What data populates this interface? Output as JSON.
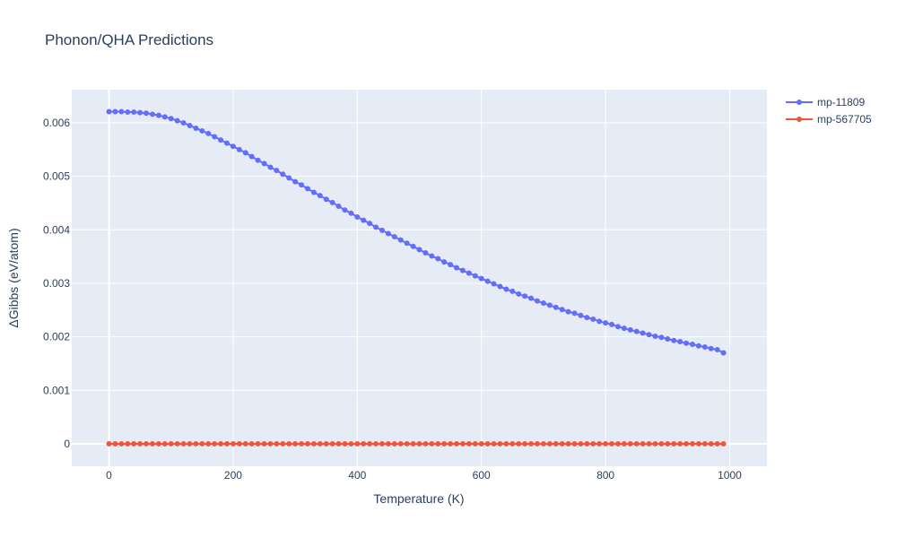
{
  "chart_data": {
    "type": "line",
    "title": "Phonon/QHA Predictions",
    "xlabel": "Temperature (K)",
    "ylabel": "ΔGibbs (eV/atom)",
    "xlim": [
      -60,
      1060
    ],
    "ylim": [
      -0.00042,
      0.00662
    ],
    "xticks": [
      0,
      200,
      400,
      600,
      800,
      1000
    ],
    "xtick_labels": [
      "0",
      "200",
      "400",
      "600",
      "800",
      "1000"
    ],
    "yticks": [
      0,
      0.001,
      0.002,
      0.003,
      0.004,
      0.005,
      0.006
    ],
    "ytick_labels": [
      "0",
      "0.001",
      "0.002",
      "0.003",
      "0.004",
      "0.005",
      "0.006"
    ],
    "grid": true,
    "legend_position": "top-right",
    "x": [
      0,
      10,
      20,
      30,
      40,
      50,
      60,
      70,
      80,
      90,
      100,
      110,
      120,
      130,
      140,
      150,
      160,
      170,
      180,
      190,
      200,
      210,
      220,
      230,
      240,
      250,
      260,
      270,
      280,
      290,
      300,
      310,
      320,
      330,
      340,
      350,
      360,
      370,
      380,
      390,
      400,
      410,
      420,
      430,
      440,
      450,
      460,
      470,
      480,
      490,
      500,
      510,
      520,
      530,
      540,
      550,
      560,
      570,
      580,
      590,
      600,
      610,
      620,
      630,
      640,
      650,
      660,
      670,
      680,
      690,
      700,
      710,
      720,
      730,
      740,
      750,
      760,
      770,
      780,
      790,
      800,
      810,
      820,
      830,
      840,
      850,
      860,
      870,
      880,
      890,
      900,
      910,
      920,
      930,
      940,
      950,
      960,
      970,
      980,
      990
    ],
    "series": [
      {
        "name": "mp-11809",
        "color": "#636efa",
        "values": [
          0.00621,
          0.00621,
          0.00621,
          0.0062,
          0.0062,
          0.00619,
          0.00618,
          0.00616,
          0.00614,
          0.00611,
          0.00608,
          0.00604,
          0.006,
          0.00595,
          0.0059,
          0.00585,
          0.0058,
          0.00574,
          0.00568,
          0.00562,
          0.00556,
          0.0055,
          0.00544,
          0.00537,
          0.0053,
          0.00524,
          0.00517,
          0.00511,
          0.00504,
          0.00497,
          0.0049,
          0.00484,
          0.00477,
          0.0047,
          0.00464,
          0.00457,
          0.00451,
          0.00444,
          0.00437,
          0.00431,
          0.00424,
          0.00418,
          0.00412,
          0.00405,
          0.00399,
          0.00393,
          0.00387,
          0.00381,
          0.00375,
          0.00369,
          0.00363,
          0.00357,
          0.00351,
          0.00346,
          0.0034,
          0.00335,
          0.00329,
          0.00324,
          0.00319,
          0.00314,
          0.00309,
          0.00304,
          0.00299,
          0.00294,
          0.00289,
          0.00285,
          0.0028,
          0.00276,
          0.00272,
          0.00267,
          0.00263,
          0.00259,
          0.00255,
          0.00251,
          0.00247,
          0.00244,
          0.0024,
          0.00236,
          0.00233,
          0.00229,
          0.00226,
          0.00223,
          0.00219,
          0.00216,
          0.00213,
          0.0021,
          0.00207,
          0.00204,
          0.00201,
          0.00199,
          0.00196,
          0.00193,
          0.00191,
          0.00188,
          0.00186,
          0.00183,
          0.00181,
          0.00178,
          0.00176,
          0.0017
        ]
      },
      {
        "name": "mp-567705",
        "color": "#ef553b",
        "values": [
          0,
          0,
          0,
          0,
          0,
          0,
          0,
          0,
          0,
          0,
          0,
          0,
          0,
          0,
          0,
          0,
          0,
          0,
          0,
          0,
          0,
          0,
          0,
          0,
          0,
          0,
          0,
          0,
          0,
          0,
          0,
          0,
          0,
          0,
          0,
          0,
          0,
          0,
          0,
          0,
          0,
          0,
          0,
          0,
          0,
          0,
          0,
          0,
          0,
          0,
          0,
          0,
          0,
          0,
          0,
          0,
          0,
          0,
          0,
          0,
          0,
          0,
          0,
          0,
          0,
          0,
          0,
          0,
          0,
          0,
          0,
          0,
          0,
          0,
          0,
          0,
          0,
          0,
          0,
          0,
          0,
          0,
          0,
          0,
          0,
          0,
          0,
          0,
          0,
          0,
          0,
          0,
          0,
          0,
          0,
          0,
          0,
          0,
          0,
          0
        ]
      }
    ]
  }
}
